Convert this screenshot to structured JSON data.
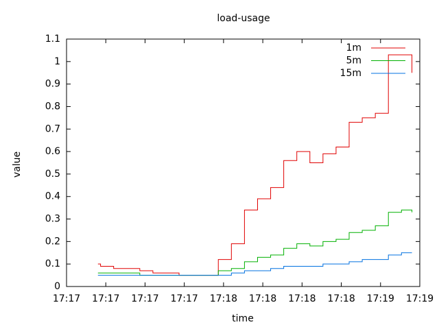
{
  "chart_data": {
    "type": "line",
    "step": true,
    "title": "load-usage",
    "xlabel": "time",
    "ylabel": "value",
    "x": [
      12,
      13,
      18,
      23,
      28,
      33,
      38,
      43,
      48,
      53,
      58,
      63,
      68,
      73,
      78,
      83,
      88,
      93,
      98,
      103,
      108,
      113,
      118,
      123,
      128,
      132
    ],
    "series": [
      {
        "name": "1m",
        "color": "#e00000",
        "values": [
          0.1,
          0.09,
          0.08,
          0.08,
          0.07,
          0.06,
          0.06,
          0.05,
          0.05,
          0.05,
          0.12,
          0.19,
          0.34,
          0.39,
          0.44,
          0.56,
          0.6,
          0.55,
          0.59,
          0.62,
          0.73,
          0.75,
          0.77,
          1.03,
          1.03,
          0.95
        ]
      },
      {
        "name": "5m",
        "color": "#00b000",
        "values": [
          0.06,
          0.06,
          0.06,
          0.06,
          0.05,
          0.05,
          0.05,
          0.05,
          0.05,
          0.05,
          0.07,
          0.08,
          0.11,
          0.13,
          0.14,
          0.17,
          0.19,
          0.18,
          0.2,
          0.21,
          0.24,
          0.25,
          0.27,
          0.33,
          0.34,
          0.33
        ]
      },
      {
        "name": "15m",
        "color": "#0070e0",
        "values": [
          0.05,
          0.05,
          0.05,
          0.05,
          0.05,
          0.05,
          0.05,
          0.05,
          0.05,
          0.05,
          0.05,
          0.06,
          0.07,
          0.07,
          0.08,
          0.09,
          0.09,
          0.09,
          0.1,
          0.1,
          0.11,
          0.12,
          0.12,
          0.14,
          0.15,
          0.15
        ]
      }
    ],
    "xlim": [
      0,
      135
    ],
    "xticks": [
      {
        "value": 0,
        "label": "17:17"
      },
      {
        "value": 15,
        "label": "17:17"
      },
      {
        "value": 30,
        "label": "17:17"
      },
      {
        "value": 45,
        "label": "17:17"
      },
      {
        "value": 60,
        "label": "17:18"
      },
      {
        "value": 75,
        "label": "17:18"
      },
      {
        "value": 90,
        "label": "17:18"
      },
      {
        "value": 105,
        "label": "17:18"
      },
      {
        "value": 120,
        "label": "17:19"
      },
      {
        "value": 135,
        "label": "17:19"
      }
    ],
    "ylim": [
      0,
      1.1
    ],
    "yticks": [
      0,
      0.1,
      0.2,
      0.3,
      0.4,
      0.5,
      0.6,
      0.7,
      0.8,
      0.9,
      1,
      1.1
    ],
    "legend": "top-right",
    "grid": false
  }
}
